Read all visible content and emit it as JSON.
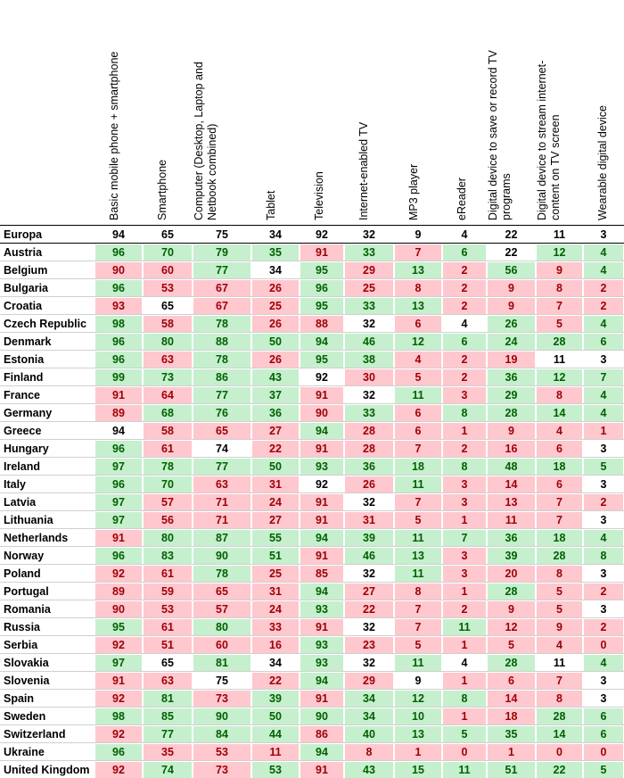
{
  "colors": {
    "green_fill": "#c6efce",
    "green_text": "#006100",
    "red_fill": "#ffc7ce",
    "red_text": "#9c0006",
    "neutral_text": "#000000",
    "grid": "#d0d0d0"
  },
  "chart_data": {
    "type": "heatmap",
    "columns": [
      [
        "Basic mobile phone + smartphone"
      ],
      [
        "Smartphone"
      ],
      [
        "Computer (Desktop, Laptop and",
        "Netbook combined)"
      ],
      [
        "Tablet"
      ],
      [
        "Television"
      ],
      [
        "Internet-enabled TV"
      ],
      [
        "MP3 player"
      ],
      [
        "eReader"
      ],
      [
        "Digital device to save or record TV",
        "programs"
      ],
      [
        "Digital device to stream internet-",
        "content on TV screen"
      ],
      [
        "Wearable digital device"
      ]
    ],
    "reference_row": {
      "label": "Europa",
      "values": [
        94,
        65,
        75,
        34,
        92,
        32,
        9,
        4,
        22,
        11,
        3
      ]
    },
    "rows": [
      {
        "label": "Austria",
        "values": [
          96,
          70,
          79,
          35,
          91,
          33,
          7,
          6,
          22,
          12,
          4
        ],
        "status": "ggggrgrgngg"
      },
      {
        "label": "Belgium",
        "values": [
          90,
          60,
          77,
          34,
          95,
          29,
          13,
          2,
          56,
          9,
          4
        ],
        "status": "rrgngrgrgrg"
      },
      {
        "label": "Bulgaria",
        "values": [
          96,
          53,
          67,
          26,
          96,
          25,
          8,
          2,
          9,
          8,
          2
        ],
        "status": "grrrgrrrrrr"
      },
      {
        "label": "Croatia",
        "values": [
          93,
          65,
          67,
          25,
          95,
          33,
          13,
          2,
          9,
          7,
          2
        ],
        "status": "rnrrgggrrrr"
      },
      {
        "label": "Czech Republic",
        "values": [
          98,
          58,
          78,
          26,
          88,
          32,
          6,
          4,
          26,
          5,
          4
        ],
        "status": "grgrrnrngrg"
      },
      {
        "label": "Denmark",
        "values": [
          96,
          80,
          88,
          50,
          94,
          46,
          12,
          6,
          24,
          28,
          6
        ],
        "status": "ggggggggggg"
      },
      {
        "label": "Estonia",
        "values": [
          96,
          63,
          78,
          26,
          95,
          38,
          4,
          2,
          19,
          11,
          3
        ],
        "status": "grgrggrrrnn"
      },
      {
        "label": "Finland",
        "values": [
          99,
          73,
          86,
          43,
          92,
          30,
          5,
          2,
          36,
          12,
          7
        ],
        "status": "ggggnrrrggg"
      },
      {
        "label": "France",
        "values": [
          91,
          64,
          77,
          37,
          91,
          32,
          11,
          3,
          29,
          8,
          4
        ],
        "status": "rrggrngrgrg"
      },
      {
        "label": "Germany",
        "values": [
          89,
          68,
          76,
          36,
          90,
          33,
          6,
          8,
          28,
          14,
          4
        ],
        "status": "rgggrgrgggg"
      },
      {
        "label": "Greece",
        "values": [
          94,
          58,
          65,
          27,
          94,
          28,
          6,
          1,
          9,
          4,
          1
        ],
        "status": "nrrrgrrrrrr"
      },
      {
        "label": "Hungary",
        "values": [
          96,
          61,
          74,
          22,
          91,
          28,
          7,
          2,
          16,
          6,
          3
        ],
        "status": "grnrrrrrrrn"
      },
      {
        "label": "Ireland",
        "values": [
          97,
          78,
          77,
          50,
          93,
          36,
          18,
          8,
          48,
          18,
          5
        ],
        "status": "ggggggggggg"
      },
      {
        "label": "Italy",
        "values": [
          96,
          70,
          63,
          31,
          92,
          26,
          11,
          3,
          14,
          6,
          3
        ],
        "status": "ggrrnrgrrrn"
      },
      {
        "label": "Latvia",
        "values": [
          97,
          57,
          71,
          24,
          91,
          32,
          7,
          3,
          13,
          7,
          2
        ],
        "status": "grrrrnrrrrr"
      },
      {
        "label": "Lithuania",
        "values": [
          97,
          56,
          71,
          27,
          91,
          31,
          5,
          1,
          11,
          7,
          3
        ],
        "status": "grrrrrrrrrn"
      },
      {
        "label": "Netherlands",
        "values": [
          91,
          80,
          87,
          55,
          94,
          39,
          11,
          7,
          36,
          18,
          4
        ],
        "status": "rgggggggggg"
      },
      {
        "label": "Norway",
        "values": [
          96,
          83,
          90,
          51,
          91,
          46,
          13,
          3,
          39,
          28,
          8
        ],
        "status": "ggggrggrggg"
      },
      {
        "label": "Poland",
        "values": [
          92,
          61,
          78,
          25,
          85,
          32,
          11,
          3,
          20,
          8,
          3
        ],
        "status": "rrgrrngrrrn"
      },
      {
        "label": "Portugal",
        "values": [
          89,
          59,
          65,
          31,
          94,
          27,
          8,
          1,
          28,
          5,
          2
        ],
        "status": "rrrrgrrrgrr"
      },
      {
        "label": "Romania",
        "values": [
          90,
          53,
          57,
          24,
          93,
          22,
          7,
          2,
          9,
          5,
          3
        ],
        "status": "rrrrgrrrrrn"
      },
      {
        "label": "Russia",
        "values": [
          95,
          61,
          80,
          33,
          91,
          32,
          7,
          11,
          12,
          9,
          2
        ],
        "status": "grgrrnrgrrr"
      },
      {
        "label": "Serbia",
        "values": [
          92,
          51,
          60,
          16,
          93,
          23,
          5,
          1,
          5,
          4,
          0
        ],
        "status": "rrrrgrrrrrr"
      },
      {
        "label": "Slovakia",
        "values": [
          97,
          65,
          81,
          34,
          93,
          32,
          11,
          4,
          28,
          11,
          4
        ],
        "status": "gngngngngng"
      },
      {
        "label": "Slovenia",
        "values": [
          91,
          63,
          75,
          22,
          94,
          29,
          9,
          1,
          6,
          7,
          3
        ],
        "status": "rrnrgrnrrrn"
      },
      {
        "label": "Spain",
        "values": [
          92,
          81,
          73,
          39,
          91,
          34,
          12,
          8,
          14,
          8,
          3
        ],
        "status": "rgrgrgggrrn"
      },
      {
        "label": "Sweden",
        "values": [
          98,
          85,
          90,
          50,
          90,
          34,
          10,
          1,
          18,
          28,
          6
        ],
        "status": "gggggggrrgg"
      },
      {
        "label": "Switzerland",
        "values": [
          92,
          77,
          84,
          44,
          86,
          40,
          13,
          5,
          35,
          14,
          6
        ],
        "status": "rgggrgggggg"
      },
      {
        "label": "Ukraine",
        "values": [
          96,
          35,
          53,
          11,
          94,
          8,
          1,
          0,
          1,
          0,
          0
        ],
        "status": "grrrgrrrrrr"
      },
      {
        "label": "United Kingdom",
        "values": [
          92,
          74,
          73,
          53,
          91,
          43,
          15,
          11,
          51,
          22,
          5
        ],
        "status": "rgrgrgggggg"
      }
    ]
  }
}
